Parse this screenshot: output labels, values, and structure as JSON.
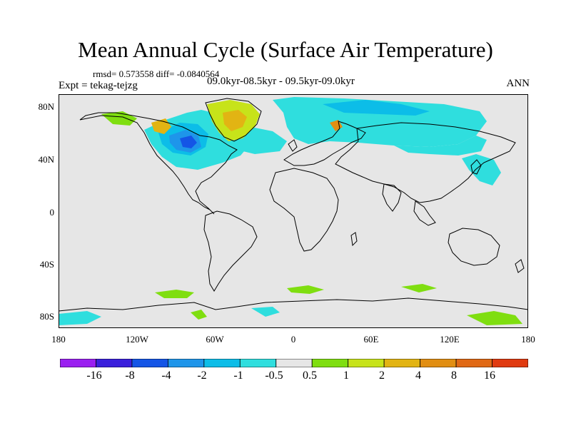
{
  "title": "Mean Annual Cycle (Surface Air Temperature)",
  "stats": "rmsd= 0.573558 diff= -0.0840564",
  "experiment": "Expt = tekag-tejzg",
  "period": "09.0kyr-08.5kyr - 09.5kyr-09.0kyr",
  "season": "ANN",
  "lat_ticks": [
    {
      "label": "80N",
      "value": 80
    },
    {
      "label": "40N",
      "value": 40
    },
    {
      "label": "0",
      "value": 0
    },
    {
      "label": "40S",
      "value": -40
    },
    {
      "label": "80S",
      "value": -80
    }
  ],
  "lon_ticks": [
    {
      "label": "180",
      "value": -180
    },
    {
      "label": "120W",
      "value": -120
    },
    {
      "label": "60W",
      "value": -60
    },
    {
      "label": "0",
      "value": 0
    },
    {
      "label": "60E",
      "value": 60
    },
    {
      "label": "120E",
      "value": 120
    },
    {
      "label": "180",
      "value": 180
    }
  ],
  "colorbar": {
    "colors": [
      "#9a1ff0",
      "#3a1fdc",
      "#1455e6",
      "#1e95ea",
      "#0cbde8",
      "#2fdede",
      "#e6e6e6",
      "#7fde10",
      "#c7e31a",
      "#e2b413",
      "#e18e12",
      "#e06814",
      "#e03a10"
    ],
    "labels": [
      "-16",
      "-8",
      "-4",
      "-2",
      "-1",
      "-0.5",
      "0.5",
      "1",
      "2",
      "4",
      "8",
      "16"
    ]
  },
  "colors": {
    "background": "#e6e6e6",
    "cool_1": "#2fdede",
    "cool_2": "#0cbde8",
    "cool_3": "#1e95ea",
    "cool_4": "#1455e6",
    "warm_1": "#7fde10",
    "warm_2": "#c7e31a",
    "warm_3": "#e2b413",
    "warm_4": "#e18e12",
    "warm_5": "#e06814"
  }
}
